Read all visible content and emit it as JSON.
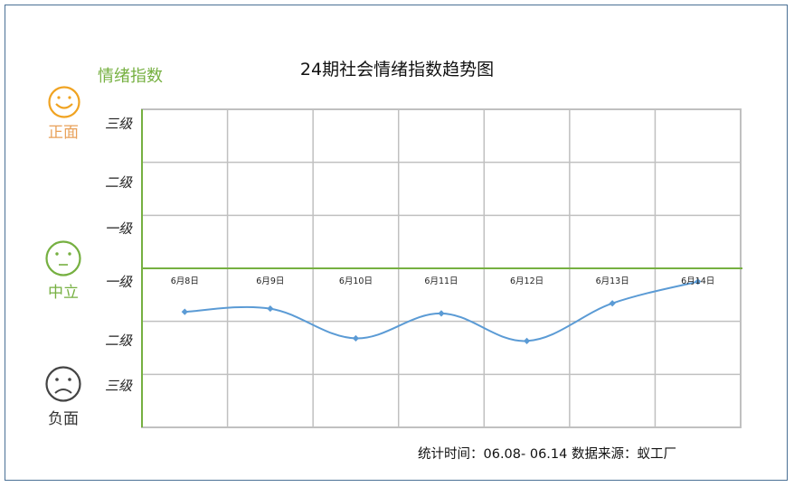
{
  "title": "24期社会情绪指数趋势图",
  "subtitle": "情绪指数",
  "faces": [
    {
      "name": "positive",
      "icon": "smile-face-icon",
      "label": "正面",
      "color": "#f0a321",
      "label_color": "#e8a15a"
    },
    {
      "name": "neutral",
      "icon": "neutral-face-icon",
      "label": "中立",
      "color": "#76b041",
      "label_color": "#76b041"
    },
    {
      "name": "negative",
      "icon": "frown-face-icon",
      "label": "负面",
      "color": "#444444",
      "label_color": "#333333"
    }
  ],
  "levels": [
    "三级",
    "二级",
    "一级",
    "一级",
    "二级",
    "三级"
  ],
  "footer": {
    "period_label": "统计时间：",
    "period": "06.08- 06.14",
    "source_label": "数据来源：",
    "source": "蚁工厂"
  },
  "chart_data": {
    "type": "line",
    "categories": [
      "6月8日",
      "6月9日",
      "6月10日",
      "6月11日",
      "6月12日",
      "6月13日",
      "6月14日"
    ],
    "values": [
      -0.82,
      -0.76,
      -1.32,
      -0.85,
      -1.37,
      -0.66,
      -0.25
    ],
    "ylim": [
      -3,
      3
    ],
    "grid": true,
    "line_color": "#5b9bd5",
    "zero_line_color": "#76b041",
    "grid_color": "#c0c0c0"
  }
}
